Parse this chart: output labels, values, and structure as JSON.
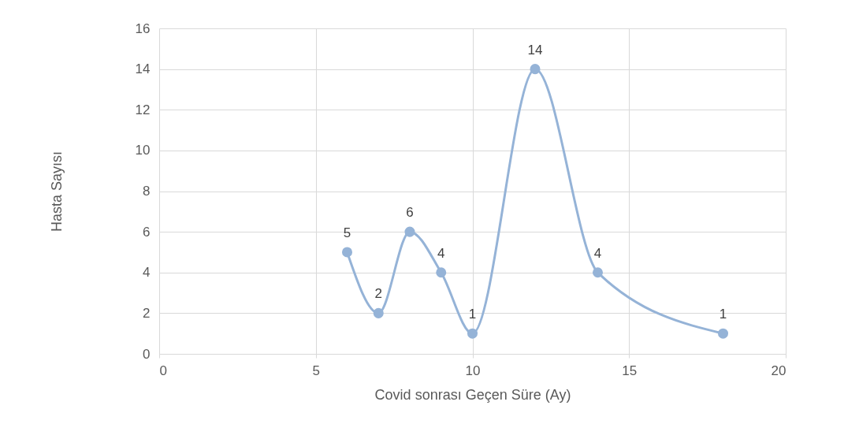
{
  "chart_data": {
    "type": "line",
    "xlabel": "Covid sonrası Geçen Süre (Ay)",
    "ylabel": "Hasta Sayısı",
    "x": [
      6,
      7,
      8,
      9,
      10,
      12,
      14,
      18
    ],
    "series": [
      {
        "color": "#95b3d7",
        "values": [
          5,
          2,
          6,
          4,
          1,
          14,
          4,
          1
        ]
      }
    ],
    "xlim": [
      0,
      20
    ],
    "xticks": [
      0,
      5,
      10,
      15,
      20
    ],
    "ylim": [
      0,
      16
    ],
    "yticks": [
      0,
      2,
      4,
      6,
      8,
      10,
      12,
      14,
      16
    ],
    "grid": true,
    "marker": "circle",
    "data_labels": true
  }
}
